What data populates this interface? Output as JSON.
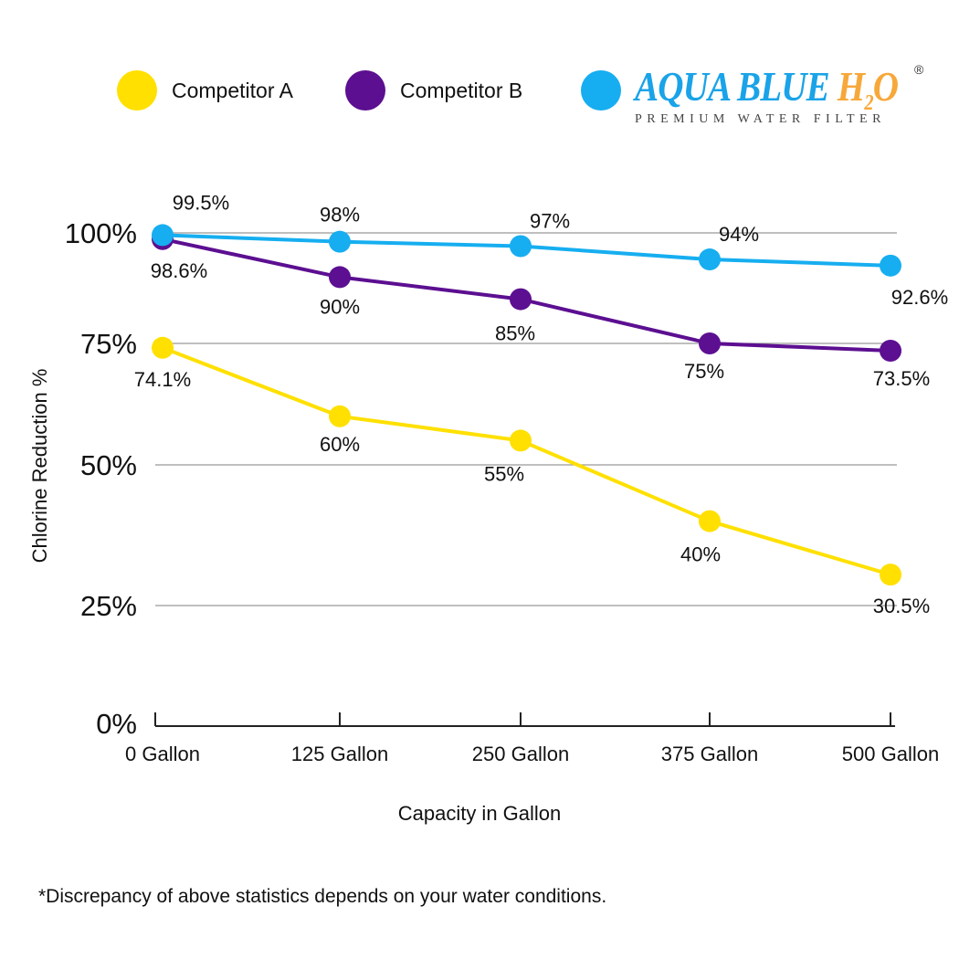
{
  "chart_data": {
    "type": "line",
    "categories": [
      "0 Gallon",
      "125 Gallon",
      "250 Gallon",
      "375 Gallon",
      "500 Gallon"
    ],
    "series": [
      {
        "name": "Competitor A",
        "color": "#ffe000",
        "values": [
          74.1,
          60,
          55,
          40,
          30.5
        ],
        "labels": [
          "74.1%",
          "60%",
          "55%",
          "40%",
          "30.5%"
        ]
      },
      {
        "name": "Competitor B",
        "color": "#5c0f91",
        "values": [
          98.6,
          90,
          85,
          75,
          73.5
        ],
        "labels": [
          "98.6%",
          "90%",
          "85%",
          "75%",
          "73.5%"
        ]
      },
      {
        "name": "AQUA BLUE H2O",
        "color": "#16aef0",
        "values": [
          99.5,
          98,
          97,
          94,
          92.6
        ],
        "labels": [
          "99.5%",
          "98%",
          "97%",
          "94%",
          "92.6%"
        ]
      }
    ],
    "yticks": [
      0,
      25,
      50,
      75,
      100
    ],
    "ytick_labels": [
      "0%",
      "25%",
      "50%",
      "75%",
      "100%"
    ],
    "ylim": [
      0,
      100
    ],
    "xlabel": "Capacity in Gallon",
    "ylabel": "Chlorine Reduction %",
    "grid": true,
    "legend_position": "top"
  },
  "legend": {
    "a": "Competitor A",
    "b": "Competitor B"
  },
  "logo": {
    "main": "AQUA BLUE ",
    "h": "H",
    "sub2": "2",
    "o": "O",
    "reg": "®",
    "tagline": "PREMIUM WATER FILTER"
  },
  "footnote": "*Discrepancy of above statistics depends on your water conditions."
}
